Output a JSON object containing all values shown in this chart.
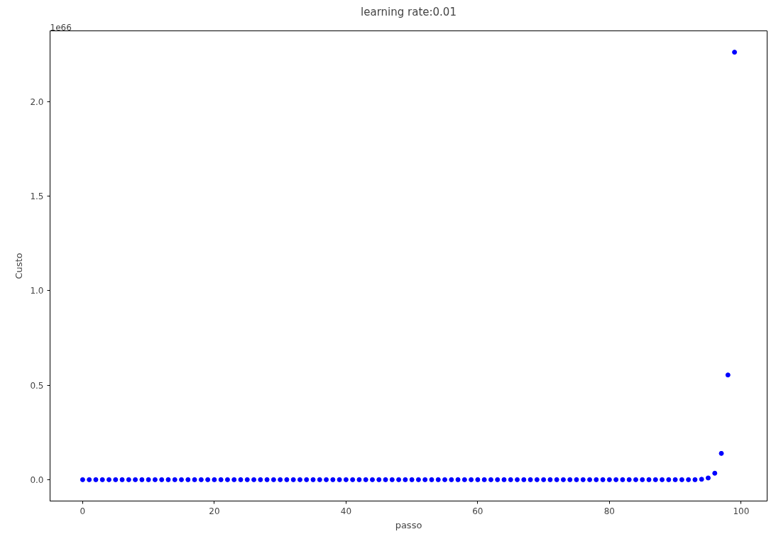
{
  "chart_data": {
    "type": "scatter",
    "title": "learning rate:0.01",
    "xlabel": "passo",
    "ylabel": "Custo",
    "annotations": [
      "1e66"
    ],
    "x": [
      0,
      1,
      2,
      3,
      4,
      5,
      6,
      7,
      8,
      9,
      10,
      11,
      12,
      13,
      14,
      15,
      16,
      17,
      18,
      19,
      20,
      21,
      22,
      23,
      24,
      25,
      26,
      27,
      28,
      29,
      30,
      31,
      32,
      33,
      34,
      35,
      36,
      37,
      38,
      39,
      40,
      41,
      42,
      43,
      44,
      45,
      46,
      47,
      48,
      49,
      50,
      51,
      52,
      53,
      54,
      55,
      56,
      57,
      58,
      59,
      60,
      61,
      62,
      63,
      64,
      65,
      66,
      67,
      68,
      69,
      70,
      71,
      72,
      73,
      74,
      75,
      76,
      77,
      78,
      79,
      80,
      81,
      82,
      83,
      84,
      85,
      86,
      87,
      88,
      89,
      90,
      91,
      92,
      93,
      94,
      95,
      96,
      97,
      98,
      99
    ],
    "series": [
      {
        "color": "#0000ff",
        "values": [
          0,
          0,
          0,
          0,
          0,
          0,
          0,
          0,
          0,
          0,
          0,
          0,
          0,
          0,
          0,
          0,
          0,
          0,
          0,
          0,
          0,
          0,
          0,
          0,
          0,
          0,
          0,
          0,
          0,
          0,
          0,
          0,
          0,
          0,
          0,
          0,
          0,
          0,
          0,
          0,
          0,
          0,
          0,
          0,
          0,
          0,
          0,
          0,
          0,
          0,
          0,
          0,
          0,
          0,
          0,
          0,
          0,
          0,
          0,
          0,
          0,
          0,
          0,
          0,
          0,
          0,
          0,
          0,
          0,
          0,
          0,
          0,
          0,
          0,
          0,
          0,
          0,
          0,
          0,
          0,
          0,
          0,
          0,
          0,
          0,
          0,
          0,
          0,
          0,
          0,
          0,
          0,
          0,
          0,
          0.002,
          0.009,
          0.034,
          0.139,
          0.554,
          2.262
        ]
      }
    ],
    "xlim": [
      -4.95,
      103.95
    ],
    "ylim": [
      -0.113,
      2.375
    ],
    "xticks": [
      0,
      20,
      40,
      60,
      80,
      100
    ],
    "yticks": [
      {
        "value": 0,
        "label": "0.0"
      },
      {
        "value": 0.5,
        "label": "0.5"
      },
      {
        "value": 1,
        "label": "1.0"
      },
      {
        "value": 1.5,
        "label": "1.5"
      },
      {
        "value": 2,
        "label": "2.0"
      }
    ],
    "marker": "circle",
    "grid": false
  }
}
